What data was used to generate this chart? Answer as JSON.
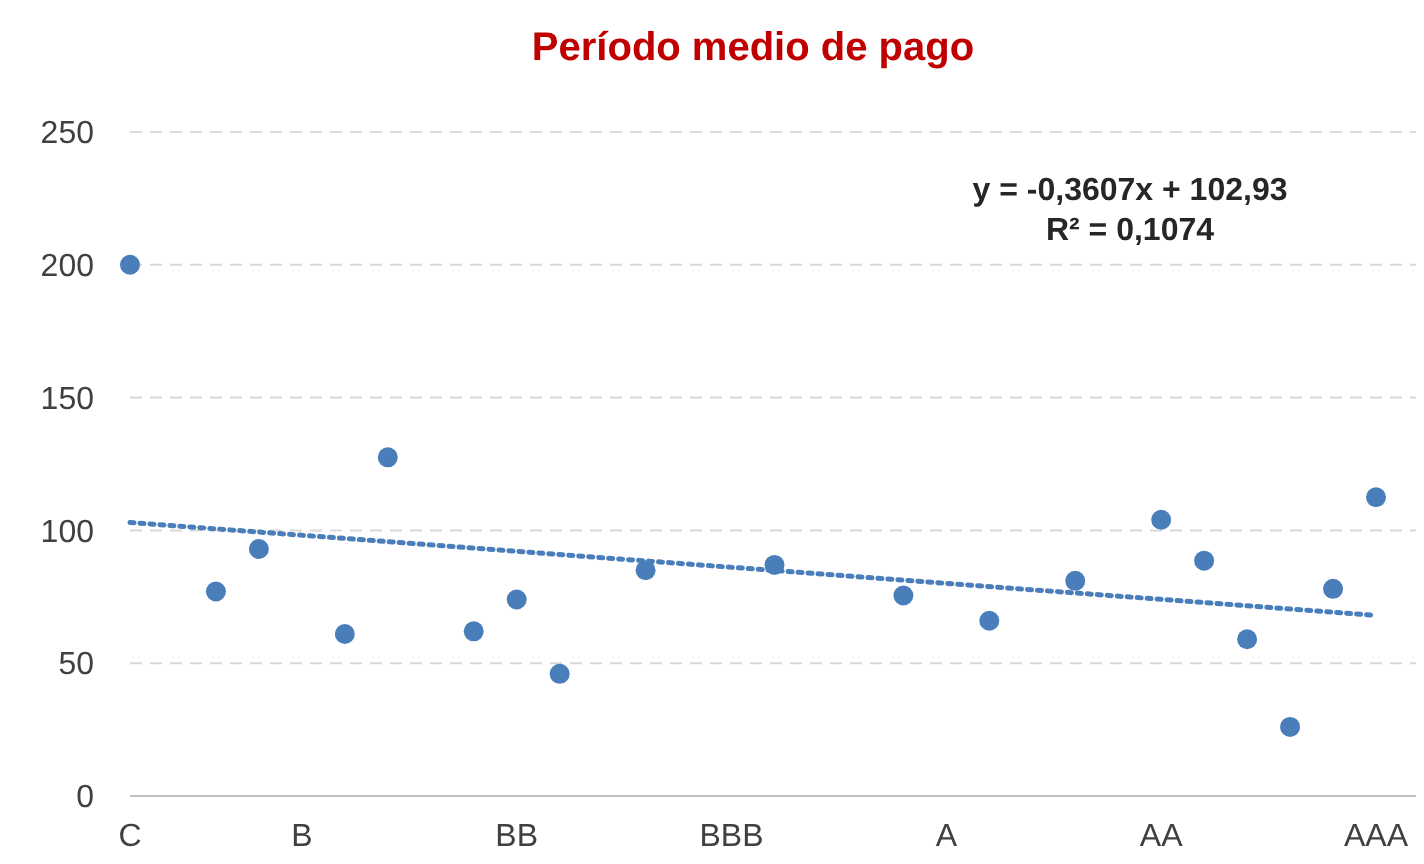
{
  "chart_data": {
    "type": "scatter",
    "title": "Período medio de pago",
    "categories": [
      "C",
      null,
      null,
      null,
      "B",
      null,
      null,
      null,
      null,
      "BB",
      null,
      null,
      null,
      null,
      "BBB",
      null,
      null,
      null,
      null,
      "A",
      null,
      null,
      null,
      null,
      "AA",
      null,
      null,
      null,
      null,
      "AAA"
    ],
    "ylim": [
      0,
      250
    ],
    "yticks": [
      0,
      50,
      100,
      150,
      200,
      250
    ],
    "grid": "y",
    "series": [
      {
        "color": "#4a7ebb",
        "marker": "circle",
        "values": [
          200,
          null,
          77,
          93,
          null,
          61,
          127.5,
          null,
          62,
          74,
          46,
          null,
          85,
          null,
          null,
          87,
          null,
          null,
          75.5,
          null,
          66,
          null,
          81,
          null,
          104,
          88.6,
          59,
          26,
          78,
          112.5
        ]
      },
      {
        "type": "line",
        "color": "#4a7ebb",
        "line_style": "dotted",
        "x": [
          "C",
          "AAA"
        ],
        "values": [
          103,
          68
        ]
      }
    ],
    "annotations": [
      "y = -0,3607x + 102,93",
      "R² = 0,1074"
    ]
  }
}
